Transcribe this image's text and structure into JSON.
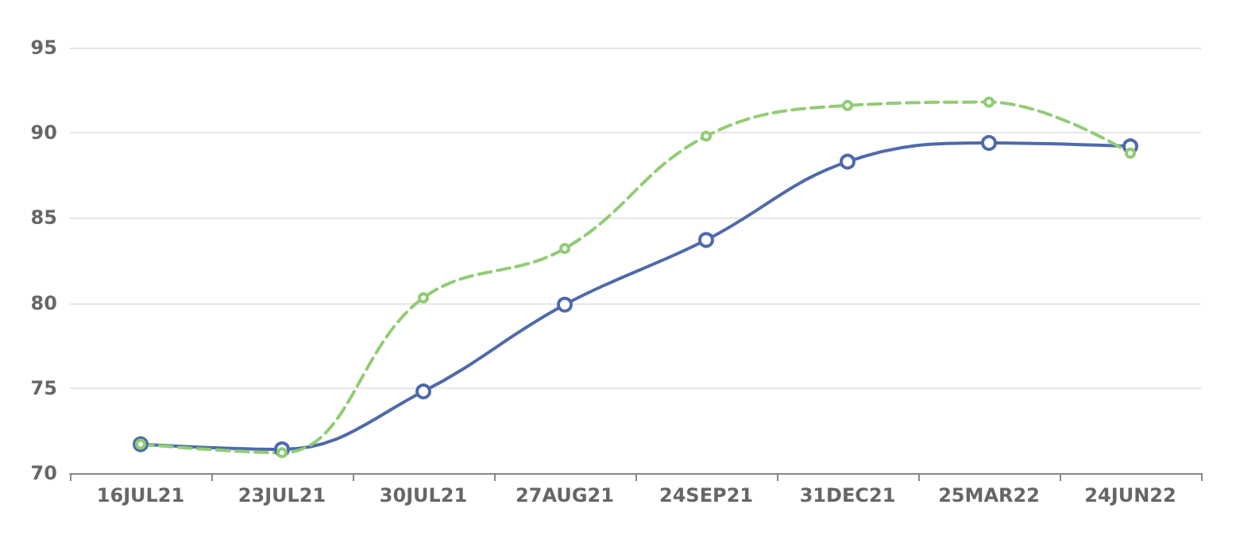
{
  "chart_data": {
    "type": "line",
    "categories": [
      "16JUL21",
      "23JUL21",
      "30JUL21",
      "27AUG21",
      "24SEP21",
      "31DEC21",
      "25MAR22",
      "24JUN22"
    ],
    "series": [
      {
        "color": "#4e6aab",
        "line_style": "solid",
        "values": [
          71.7,
          71.4,
          74.8,
          79.9,
          83.7,
          88.3,
          89.4,
          89.2
        ]
      },
      {
        "color": "#91cc75",
        "line_style": "dashed",
        "values": [
          71.7,
          71.2,
          80.3,
          83.2,
          89.8,
          91.6,
          91.8,
          88.8
        ]
      }
    ],
    "ylim": [
      70,
      95
    ],
    "yticks": [
      70,
      75,
      80,
      85,
      90,
      95
    ],
    "grid": "y",
    "marker": "circle"
  }
}
